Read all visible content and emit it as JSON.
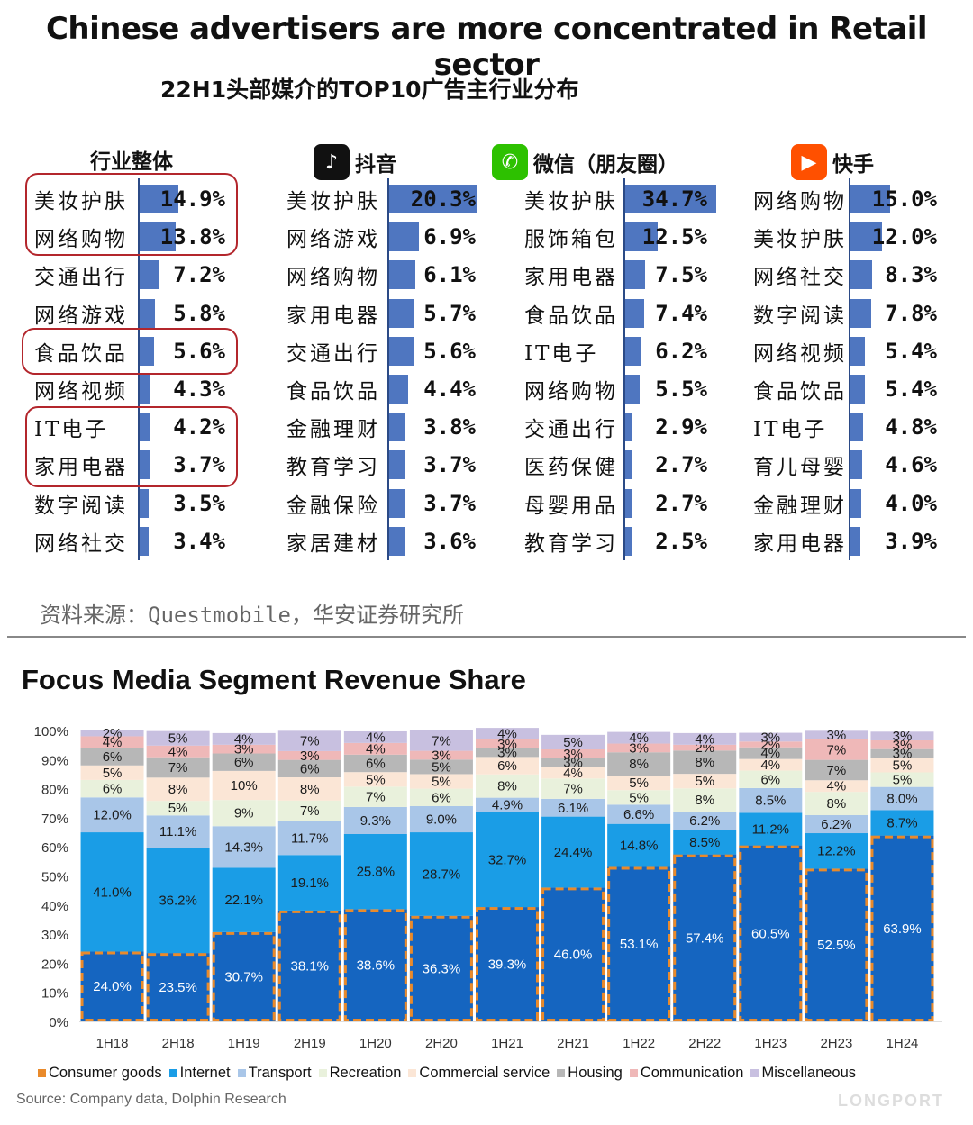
{
  "main_title": "Chinese advertisers are more concentrated in Retail sector",
  "sub_title": "22H1头部媒介的TOP10广告主行业分布",
  "panels": [
    {
      "title": "行业整体",
      "icon": "",
      "icon_color": "",
      "rows": [
        {
          "label": "美妆护肤",
          "value": "14.9%",
          "num": 14.9
        },
        {
          "label": "网络购物",
          "value": "13.8%",
          "num": 13.8
        },
        {
          "label": "交通出行",
          "value": "7.2%",
          "num": 7.2
        },
        {
          "label": "网络游戏",
          "value": "5.8%",
          "num": 5.8
        },
        {
          "label": "食品饮品",
          "value": "5.6%",
          "num": 5.6
        },
        {
          "label": "网络视频",
          "value": "4.3%",
          "num": 4.3
        },
        {
          "label": "IT电子",
          "value": "4.2%",
          "num": 4.2
        },
        {
          "label": "家用电器",
          "value": "3.7%",
          "num": 3.7
        },
        {
          "label": "数字阅读",
          "value": "3.5%",
          "num": 3.5
        },
        {
          "label": "网络社交",
          "value": "3.4%",
          "num": 3.4
        }
      ]
    },
    {
      "title": "抖音",
      "icon": "douyin-icon",
      "icon_color": "#111111",
      "rows": [
        {
          "label": "美妆护肤",
          "value": "20.3%",
          "num": 20.3
        },
        {
          "label": "网络游戏",
          "value": "6.9%",
          "num": 6.9
        },
        {
          "label": "网络购物",
          "value": "6.1%",
          "num": 6.1
        },
        {
          "label": "家用电器",
          "value": "5.7%",
          "num": 5.7
        },
        {
          "label": "交通出行",
          "value": "5.6%",
          "num": 5.6
        },
        {
          "label": "食品饮品",
          "value": "4.4%",
          "num": 4.4
        },
        {
          "label": "金融理财",
          "value": "3.8%",
          "num": 3.8
        },
        {
          "label": "教育学习",
          "value": "3.7%",
          "num": 3.7
        },
        {
          "label": "金融保险",
          "value": "3.7%",
          "num": 3.7
        },
        {
          "label": "家居建材",
          "value": "3.6%",
          "num": 3.6
        }
      ]
    },
    {
      "title": "微信（朋友圈）",
      "icon": "wechat-icon",
      "icon_color": "#2dc100",
      "rows": [
        {
          "label": "美妆护肤",
          "value": "34.7%",
          "num": 34.7
        },
        {
          "label": "服饰箱包",
          "value": "12.5%",
          "num": 12.5
        },
        {
          "label": "家用电器",
          "value": "7.5%",
          "num": 7.5
        },
        {
          "label": "食品饮品",
          "value": "7.4%",
          "num": 7.4
        },
        {
          "label": "IT电子",
          "value": "6.2%",
          "num": 6.2
        },
        {
          "label": "网络购物",
          "value": "5.5%",
          "num": 5.5
        },
        {
          "label": "交通出行",
          "value": "2.9%",
          "num": 2.9
        },
        {
          "label": "医药保健",
          "value": "2.7%",
          "num": 2.7
        },
        {
          "label": "母婴用品",
          "value": "2.7%",
          "num": 2.7
        },
        {
          "label": "教育学习",
          "value": "2.5%",
          "num": 2.5
        }
      ]
    },
    {
      "title": "快手",
      "icon": "kuaishou-icon",
      "icon_color": "#ff5000",
      "rows": [
        {
          "label": "网络购物",
          "value": "15.0%",
          "num": 15.0
        },
        {
          "label": "美妆护肤",
          "value": "12.0%",
          "num": 12.0
        },
        {
          "label": "网络社交",
          "value": "8.3%",
          "num": 8.3
        },
        {
          "label": "数字阅读",
          "value": "7.8%",
          "num": 7.8
        },
        {
          "label": "网络视频",
          "value": "5.4%",
          "num": 5.4
        },
        {
          "label": "食品饮品",
          "value": "5.4%",
          "num": 5.4
        },
        {
          "label": "IT电子",
          "value": "4.8%",
          "num": 4.8
        },
        {
          "label": "育儿母婴",
          "value": "4.6%",
          "num": 4.6
        },
        {
          "label": "金融理财",
          "value": "4.0%",
          "num": 4.0
        },
        {
          "label": "家用电器",
          "value": "3.9%",
          "num": 3.9
        }
      ]
    }
  ],
  "source_cn": "资料来源：Questmobile，华安证券研究所",
  "chart_title": "Focus Media Segment Revenue Share",
  "source_en": "Source:  Company data, Dolphin Research",
  "watermark": "LONGPORT",
  "colors": {
    "Consumer goods": "#1565c0",
    "Internet": "#1a9de6",
    "Transport": "#a9c6e8",
    "Recreation": "#e9f1dc",
    "Commercial service": "#fbe6d6",
    "Housing": "#b7b7b7",
    "Communication": "#efb8b8",
    "Miscellaneous": "#c8c0e0",
    "dash": "#e98a2b"
  },
  "chart_data": {
    "type": "bar",
    "stacked": true,
    "categories": [
      "1H18",
      "2H18",
      "1H19",
      "2H19",
      "1H20",
      "2H20",
      "1H21",
      "2H21",
      "1H22",
      "2H22",
      "1H23",
      "2H23",
      "1H24"
    ],
    "ylim": [
      0,
      100
    ],
    "yticks": [
      "0%",
      "10%",
      "20%",
      "30%",
      "40%",
      "50%",
      "60%",
      "70%",
      "80%",
      "90%",
      "100%"
    ],
    "legend_position": "bottom",
    "series": [
      {
        "name": "Consumer goods",
        "values": [
          24.0,
          23.5,
          30.7,
          38.1,
          38.6,
          36.3,
          39.3,
          46.0,
          53.1,
          57.4,
          60.5,
          52.5,
          63.9
        ],
        "labels": [
          "24.0%",
          "23.5%",
          "30.7%",
          "38.1%",
          "38.6%",
          "36.3%",
          "39.3%",
          "46.0%",
          "53.1%",
          "57.4%",
          "60.5%",
          "52.5%",
          "63.9%"
        ]
      },
      {
        "name": "Internet",
        "values": [
          41.0,
          36.2,
          22.1,
          19.1,
          25.8,
          28.7,
          32.7,
          24.4,
          14.8,
          8.5,
          11.2,
          12.2,
          8.7
        ],
        "labels": [
          "41.0%",
          "36.2%",
          "22.1%",
          "19.1%",
          "25.8%",
          "28.7%",
          "32.7%",
          "24.4%",
          "14.8%",
          "8.5%",
          "11.2%",
          "12.2%",
          "8.7%"
        ]
      },
      {
        "name": "Transport",
        "values": [
          12.0,
          11.1,
          14.3,
          11.7,
          9.3,
          9.0,
          4.9,
          6.1,
          6.6,
          6.2,
          8.5,
          6.2,
          8.0
        ],
        "labels": [
          "12.0%",
          "11.1%",
          "14.3%",
          "11.7%",
          "9.3%",
          "9.0%",
          "4.9%",
          "6.1%",
          "6.6%",
          "6.2%",
          "8.5%",
          "6.2%",
          "8.0%"
        ]
      },
      {
        "name": "Recreation",
        "values": [
          6,
          5,
          9,
          7,
          7,
          6,
          8,
          7,
          5,
          8,
          6,
          8,
          5
        ],
        "labels": [
          "6%",
          "5%",
          "9%",
          "7%",
          "7%",
          "6%",
          "8%",
          "7%",
          "5%",
          "8%",
          "6%",
          "8%",
          "5%"
        ]
      },
      {
        "name": "Commercial service",
        "values": [
          5,
          8,
          10,
          8,
          5,
          5,
          6,
          4,
          5,
          5,
          4,
          4,
          5
        ],
        "labels": [
          "5%",
          "8%",
          "10%",
          "8%",
          "5%",
          "5%",
          "6%",
          "4%",
          "5%",
          "5%",
          "4%",
          "4%",
          "5%"
        ]
      },
      {
        "name": "Housing",
        "values": [
          6,
          7,
          6,
          6,
          6,
          5,
          3,
          3,
          8,
          8,
          4,
          7,
          3
        ],
        "labels": [
          "6%",
          "7%",
          "6%",
          "6%",
          "6%",
          "5%",
          "3%",
          "3%",
          "8%",
          "8%",
          "4%",
          "7%",
          "3%"
        ]
      },
      {
        "name": "Communication",
        "values": [
          4,
          4,
          3,
          3,
          4,
          3,
          3,
          3,
          3,
          2,
          2,
          7,
          3
        ],
        "labels": [
          "4%",
          "4%",
          "3%",
          "3%",
          "4%",
          "3%",
          "3%",
          "3%",
          "3%",
          "2%",
          "2%",
          "7%",
          "3%"
        ]
      },
      {
        "name": "Miscellaneous",
        "values": [
          2,
          5,
          4,
          7,
          4,
          7,
          4,
          5,
          4,
          4,
          3,
          3,
          3
        ],
        "labels": [
          "2%",
          "5%",
          "4%",
          "7%",
          "4%",
          "7%",
          "4%",
          "5%",
          "4%",
          "4%",
          "3%",
          "3%",
          "3%"
        ]
      }
    ]
  }
}
